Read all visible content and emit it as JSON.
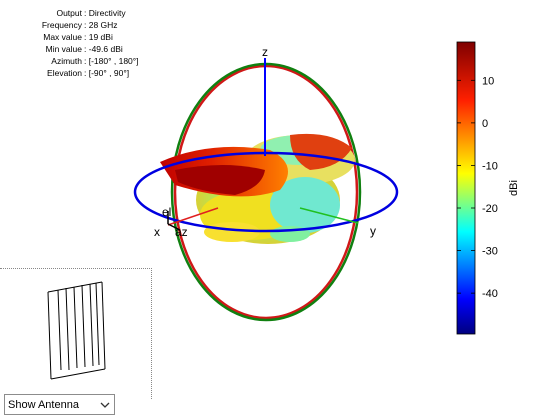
{
  "info": {
    "rows": [
      {
        "key": "Output",
        "value": "Directivity"
      },
      {
        "key": "Frequency",
        "value": "28 GHz"
      },
      {
        "key": "Max value",
        "value": "19 dBi"
      },
      {
        "key": "Min value",
        "value": "-49.6 dBi"
      },
      {
        "key": "Azimuth",
        "value": "[-180° , 180°]"
      },
      {
        "key": "Elevation",
        "value": "[-90° , 90°]"
      }
    ]
  },
  "axes": {
    "z": "z",
    "x": "x",
    "y": "y",
    "el": "el",
    "az": "az"
  },
  "colorbar": {
    "unit": "dBi",
    "min": -49.6,
    "max": 19,
    "ticks": [
      "10",
      "0",
      "-10",
      "-20",
      "-30",
      "-40"
    ],
    "tick_values": [
      10,
      0,
      -10,
      -20,
      -30,
      -40
    ]
  },
  "colors": {
    "ring_xy": "#0000e0",
    "ring_xz": "#d01818",
    "ring_yz": "#108010"
  },
  "control": {
    "selected": "Show Antenna",
    "chevron_icon": "chevron-down-icon"
  }
}
